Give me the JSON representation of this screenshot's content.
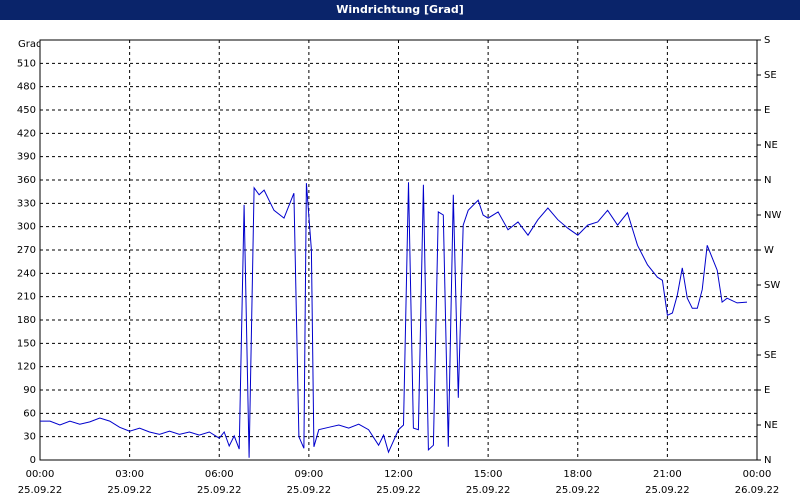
{
  "chart_data": {
    "type": "line",
    "title": "Windrichtung [Grad]",
    "y_label": "Grad",
    "x": [
      "25.09.22 00:00",
      "25.09.22 00:20",
      "25.09.22 00:40",
      "25.09.22 01:00",
      "25.09.22 01:20",
      "25.09.22 01:40",
      "25.09.22 02:00",
      "25.09.22 02:20",
      "25.09.22 02:40",
      "25.09.22 03:00",
      "25.09.22 03:20",
      "25.09.22 03:40",
      "25.09.22 04:00",
      "25.09.22 04:20",
      "25.09.22 04:40",
      "25.09.22 05:00",
      "25.09.22 05:20",
      "25.09.22 05:40",
      "25.09.22 06:00",
      "25.09.22 06:10",
      "25.09.22 06:20",
      "25.09.22 06:30",
      "25.09.22 06:40",
      "25.09.22 06:50",
      "25.09.22 07:00",
      "25.09.22 07:10",
      "25.09.22 07:20",
      "25.09.22 07:30",
      "25.09.22 07:40",
      "25.09.22 07:50",
      "25.09.22 08:10",
      "25.09.22 08:30",
      "25.09.22 08:40",
      "25.09.22 08:50",
      "25.09.22 08:55",
      "25.09.22 09:05",
      "25.09.22 09:10",
      "25.09.22 09:20",
      "25.09.22 09:40",
      "25.09.22 10:00",
      "25.09.22 10:20",
      "25.09.22 10:40",
      "25.09.22 11:00",
      "25.09.22 11:20",
      "25.09.22 11:30",
      "25.09.22 11:40",
      "25.09.22 12:00",
      "25.09.22 12:10",
      "25.09.22 12:20",
      "25.09.22 12:30",
      "25.09.22 12:40",
      "25.09.22 12:50",
      "25.09.22 13:00",
      "25.09.22 13:10",
      "25.09.22 13:20",
      "25.09.22 13:30",
      "25.09.22 13:40",
      "25.09.22 13:50",
      "25.09.22 14:00",
      "25.09.22 14:10",
      "25.09.22 14:20",
      "25.09.22 14:40",
      "25.09.22 14:50",
      "25.09.22 15:00",
      "25.09.22 15:20",
      "25.09.22 15:40",
      "25.09.22 16:00",
      "25.09.22 16:20",
      "25.09.22 16:40",
      "25.09.22 17:00",
      "25.09.22 17:20",
      "25.09.22 17:40",
      "25.09.22 18:00",
      "25.09.22 18:20",
      "25.09.22 18:40",
      "25.09.22 19:00",
      "25.09.22 19:20",
      "25.09.22 19:40",
      "25.09.22 20:00",
      "25.09.22 20:20",
      "25.09.22 20:40",
      "25.09.22 20:50",
      "25.09.22 21:00",
      "25.09.22 21:10",
      "25.09.22 21:20",
      "25.09.22 21:30",
      "25.09.22 21:40",
      "25.09.22 21:50",
      "25.09.22 22:00",
      "25.09.22 22:10",
      "25.09.22 22:20",
      "25.09.22 22:30",
      "25.09.22 22:40",
      "25.09.22 22:50",
      "25.09.22 23:00",
      "25.09.22 23:20",
      "25.09.22 23:40"
    ],
    "series": [
      {
        "color": "#0000cc",
        "values": [
          50,
          50,
          45,
          50,
          46,
          49,
          54,
          50,
          42,
          37,
          41,
          36,
          33,
          37,
          33,
          36,
          32,
          36,
          28,
          36,
          18,
          31,
          14,
          328,
          3,
          350,
          341,
          347,
          334,
          321,
          311,
          343,
          30,
          15,
          356,
          270,
          17,
          39,
          42,
          45,
          41,
          46,
          39,
          19,
          32,
          10,
          39,
          45,
          357,
          41,
          39,
          354,
          13,
          19,
          319,
          315,
          17,
          341,
          80,
          302,
          321,
          334,
          315,
          311,
          319,
          296,
          306,
          289,
          309,
          324,
          309,
          298,
          289,
          302,
          306,
          321,
          302,
          318,
          276,
          251,
          235,
          231,
          186,
          189,
          212,
          247,
          208,
          195,
          195,
          219,
          276,
          260,
          244,
          203,
          208,
          202,
          203
        ]
      }
    ],
    "xlim": [
      "25.09.22 00:00",
      "26.09.22 00:00"
    ],
    "xticks": [
      {
        "value": "25.09.22 00:00",
        "time": "00:00",
        "date": "25.09.22"
      },
      {
        "value": "25.09.22 03:00",
        "time": "03:00",
        "date": "25.09.22"
      },
      {
        "value": "25.09.22 06:00",
        "time": "06:00",
        "date": "25.09.22"
      },
      {
        "value": "25.09.22 09:00",
        "time": "09:00",
        "date": "25.09.22"
      },
      {
        "value": "25.09.22 12:00",
        "time": "12:00",
        "date": "25.09.22"
      },
      {
        "value": "25.09.22 15:00",
        "time": "15:00",
        "date": "25.09.22"
      },
      {
        "value": "25.09.22 18:00",
        "time": "18:00",
        "date": "25.09.22"
      },
      {
        "value": "25.09.22 21:00",
        "time": "21:00",
        "date": "25.09.22"
      },
      {
        "value": "26.09.22 00:00",
        "time": "00:00",
        "date": "26.09.22"
      }
    ],
    "ylim": [
      0,
      540
    ],
    "yticks": [
      0,
      30,
      60,
      90,
      120,
      150,
      180,
      210,
      240,
      270,
      300,
      330,
      360,
      390,
      420,
      450,
      480,
      510
    ],
    "y2lim": [
      0,
      540
    ],
    "y2ticks": [
      {
        "value": 0,
        "label": "N"
      },
      {
        "value": 45,
        "label": "NE"
      },
      {
        "value": 90,
        "label": "E"
      },
      {
        "value": 135,
        "label": "SE"
      },
      {
        "value": 180,
        "label": "S"
      },
      {
        "value": 225,
        "label": "SW"
      },
      {
        "value": 270,
        "label": "W"
      },
      {
        "value": 315,
        "label": "NW"
      },
      {
        "value": 360,
        "label": "N"
      },
      {
        "value": 405,
        "label": "NE"
      },
      {
        "value": 450,
        "label": "E"
      },
      {
        "value": 495,
        "label": "SE"
      },
      {
        "value": 540,
        "label": "S"
      }
    ],
    "grid": true
  }
}
